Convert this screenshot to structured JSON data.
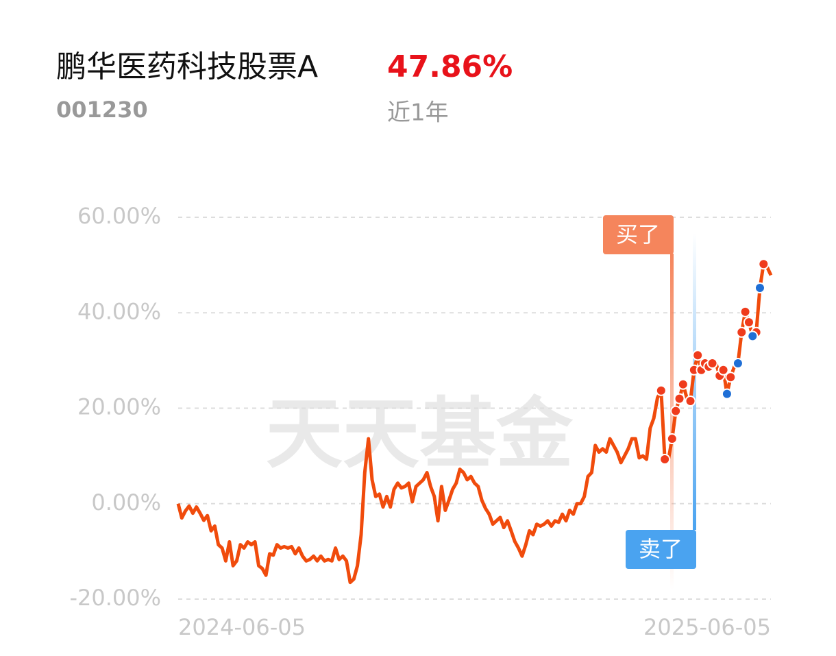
{
  "chart_data": {
    "type": "line",
    "title": "鹏华医药科技股票A",
    "return_label": "47.86%",
    "code": "001230",
    "period": "近1年",
    "watermark": "天天基金",
    "categories": [
      "2024-06-05",
      null,
      null,
      null,
      null,
      null,
      null,
      null,
      null,
      null,
      null,
      null,
      null,
      null,
      null,
      null,
      null,
      null,
      null,
      null,
      null,
      null,
      null,
      null,
      null,
      null,
      null,
      null,
      null,
      null,
      null,
      null,
      null,
      null,
      null,
      null,
      null,
      null,
      null,
      null,
      null,
      null,
      null,
      null,
      null,
      null,
      null,
      null,
      null,
      null,
      null,
      null,
      null,
      null,
      null,
      null,
      null,
      null,
      null,
      null,
      null,
      null,
      null,
      null,
      null,
      null,
      null,
      null,
      null,
      null,
      null,
      null,
      null,
      null,
      null,
      null,
      null,
      null,
      null,
      null,
      null,
      null,
      null,
      null,
      null,
      null,
      null,
      null,
      null,
      null,
      null,
      null,
      null,
      null,
      null,
      null,
      null,
      null,
      null,
      null,
      null,
      null,
      null,
      null,
      null,
      null,
      null,
      null,
      null,
      null,
      null,
      null,
      null,
      null,
      null,
      null,
      null,
      null,
      null,
      null,
      null,
      null,
      null,
      null,
      null,
      null,
      null,
      null,
      null,
      null,
      null,
      null,
      null,
      null,
      null,
      null,
      null,
      null,
      null,
      null,
      null,
      null,
      null,
      null,
      null,
      null,
      null,
      null,
      null,
      null,
      null,
      null,
      null,
      null,
      null,
      null,
      null,
      null,
      null,
      null,
      null,
      null,
      "2025-06-05"
    ],
    "series": [
      {
        "role": "line",
        "color": "#f04b0c",
        "values": [
          0,
          -3,
          -1.5,
          -0.5,
          -2,
          -0.7,
          -2,
          -3.5,
          -2.5,
          -5.7,
          -4.7,
          -8.6,
          -9.3,
          -12,
          -8,
          -13,
          -12,
          -8.6,
          -9.3,
          -8,
          -8.6,
          -8,
          -13,
          -13.6,
          -15,
          -10.5,
          -10.8,
          -8.6,
          -9.3,
          -9,
          -9.3,
          -9,
          -10.5,
          -9.3,
          -11,
          -12,
          -11.7,
          -11,
          -12,
          -11,
          -12,
          -11.7,
          -12,
          -9.3,
          -11.7,
          -11,
          -12,
          -16.5,
          -15.8,
          -13,
          -6.5,
          6.5,
          13.6,
          5,
          1.5,
          2,
          -0.7,
          1.5,
          -0.7,
          3,
          4.3,
          3.3,
          3.6,
          4.3,
          0.4,
          3.6,
          4.3,
          5,
          6.5,
          3.6,
          1.5,
          -3.6,
          3.6,
          -1.4,
          0.7,
          3,
          4.3,
          7.2,
          6.5,
          5,
          5.7,
          4.3,
          3.6,
          0.7,
          -1,
          -2.2,
          -4.3,
          -3.6,
          -2.9,
          -5,
          -3.6,
          -5.7,
          -7.9,
          -9.3,
          -11,
          -8.6,
          -5.7,
          -6.5,
          -4.3,
          -4.7,
          -4.3,
          -3.6,
          -4.7,
          -3.6,
          -3.9,
          -2.2,
          -3.6,
          -1.4,
          -2.2,
          0,
          0,
          1.5,
          5.7,
          6.5,
          12.2,
          10.8,
          11.5,
          10.8,
          13.6,
          12.2,
          10.8,
          8.6,
          10,
          11.5,
          13.6,
          13.6,
          9.6,
          10,
          9.3,
          15.8,
          17.9,
          22.2,
          23.7,
          9.3,
          9.3,
          13.6,
          19.4,
          22,
          25,
          22.2,
          21.5,
          28,
          31.1,
          28,
          29.4,
          28.7,
          29.4,
          29.4,
          26.8,
          28,
          23,
          26.5,
          28.7,
          29.4,
          35.9,
          40.2,
          38,
          35.1,
          35.9,
          45.2,
          50.2,
          49.5,
          47.86
        ]
      },
      {
        "name": "买了",
        "role": "dots",
        "color": "#ef3b1c",
        "box_color": "#f5855c",
        "values": [
          null,
          null,
          null,
          null,
          null,
          null,
          null,
          null,
          null,
          null,
          null,
          null,
          null,
          null,
          null,
          null,
          null,
          null,
          null,
          null,
          null,
          null,
          null,
          null,
          null,
          null,
          null,
          null,
          null,
          null,
          null,
          null,
          null,
          null,
          null,
          null,
          null,
          null,
          null,
          null,
          null,
          null,
          null,
          null,
          null,
          null,
          null,
          null,
          null,
          null,
          null,
          null,
          null,
          null,
          null,
          null,
          null,
          null,
          null,
          null,
          null,
          null,
          null,
          null,
          null,
          null,
          null,
          null,
          null,
          null,
          null,
          null,
          null,
          null,
          null,
          null,
          null,
          null,
          null,
          null,
          null,
          null,
          null,
          null,
          null,
          null,
          null,
          null,
          null,
          null,
          null,
          null,
          null,
          null,
          null,
          null,
          null,
          null,
          null,
          null,
          null,
          null,
          null,
          null,
          null,
          null,
          null,
          null,
          null,
          null,
          null,
          null,
          null,
          null,
          null,
          null,
          null,
          null,
          null,
          null,
          null,
          null,
          null,
          null,
          null,
          null,
          null,
          null,
          null,
          null,
          null,
          null,
          23.7,
          9.3,
          null,
          13.6,
          19.4,
          22,
          25,
          null,
          21.5,
          28,
          31.1,
          28,
          29.4,
          28.7,
          29.4,
          null,
          26.8,
          28,
          null,
          26.5,
          null,
          null,
          35.9,
          40.2,
          38,
          null,
          35.9,
          null,
          50.2,
          null,
          null
        ]
      },
      {
        "name": "卖了",
        "role": "dots",
        "color": "#1f6fd6",
        "box_color": "#4aa3f0",
        "values": [
          null,
          null,
          null,
          null,
          null,
          null,
          null,
          null,
          null,
          null,
          null,
          null,
          null,
          null,
          null,
          null,
          null,
          null,
          null,
          null,
          null,
          null,
          null,
          null,
          null,
          null,
          null,
          null,
          null,
          null,
          null,
          null,
          null,
          null,
          null,
          null,
          null,
          null,
          null,
          null,
          null,
          null,
          null,
          null,
          null,
          null,
          null,
          null,
          null,
          null,
          null,
          null,
          null,
          null,
          null,
          null,
          null,
          null,
          null,
          null,
          null,
          null,
          null,
          null,
          null,
          null,
          null,
          null,
          null,
          null,
          null,
          null,
          null,
          null,
          null,
          null,
          null,
          null,
          null,
          null,
          null,
          null,
          null,
          null,
          null,
          null,
          null,
          null,
          null,
          null,
          null,
          null,
          null,
          null,
          null,
          null,
          null,
          null,
          null,
          null,
          null,
          null,
          null,
          null,
          null,
          null,
          null,
          null,
          null,
          null,
          null,
          null,
          null,
          null,
          null,
          null,
          null,
          null,
          null,
          null,
          null,
          null,
          null,
          null,
          null,
          null,
          null,
          null,
          null,
          null,
          null,
          null,
          null,
          null,
          null,
          null,
          null,
          null,
          null,
          null,
          null,
          null,
          null,
          null,
          null,
          null,
          null,
          null,
          null,
          null,
          23,
          null,
          null,
          29.4,
          null,
          null,
          null,
          35.1,
          null,
          45.2,
          null,
          null,
          null
        ]
      }
    ],
    "ylim": [
      -20,
      60
    ],
    "yticks": [
      {
        "value": -20,
        "label": "-20.00%"
      },
      {
        "value": 0,
        "label": "0.00%"
      },
      {
        "value": 20,
        "label": "20.00%"
      },
      {
        "value": 40,
        "label": "40.00%"
      },
      {
        "value": 60,
        "label": "60.00%"
      }
    ],
    "grid": true
  }
}
